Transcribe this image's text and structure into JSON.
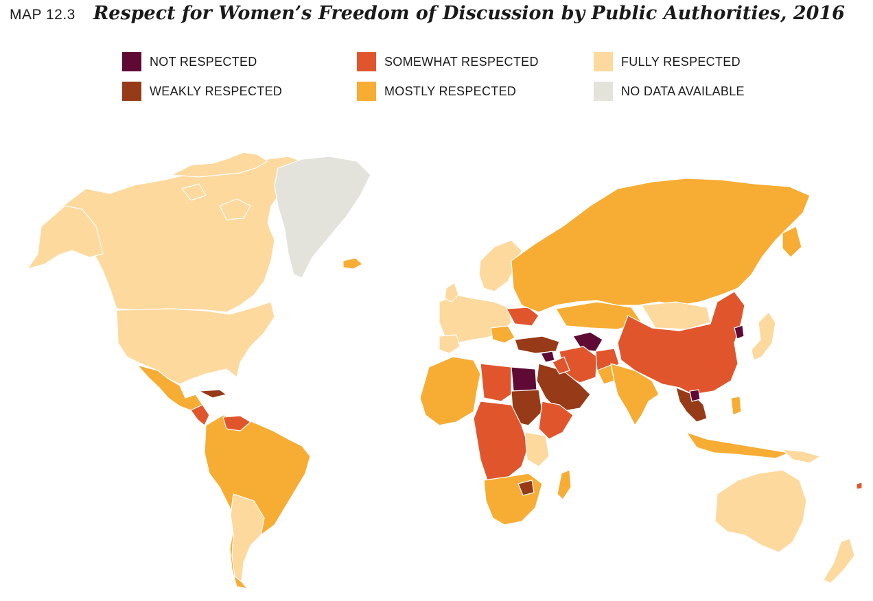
{
  "header": {
    "map_label": "MAP 12.3",
    "title": "Respect for Women’s Freedom of Discussion by Public Authorities, 2016"
  },
  "legend": [
    {
      "label": "NOT RESPECTED",
      "color": "#5e0a35"
    },
    {
      "label": "WEAKLY RESPECTED",
      "color": "#963a17"
    },
    {
      "label": "SOMEWHAT RESPECTED",
      "color": "#e1552c"
    },
    {
      "label": "MOSTLY RESPECTED",
      "color": "#f7ac33"
    },
    {
      "label": "FULLY RESPECTED",
      "color": "#fdd99e"
    },
    {
      "label": "NO DATA AVAILABLE",
      "color": "#e3e3dc"
    }
  ]
}
